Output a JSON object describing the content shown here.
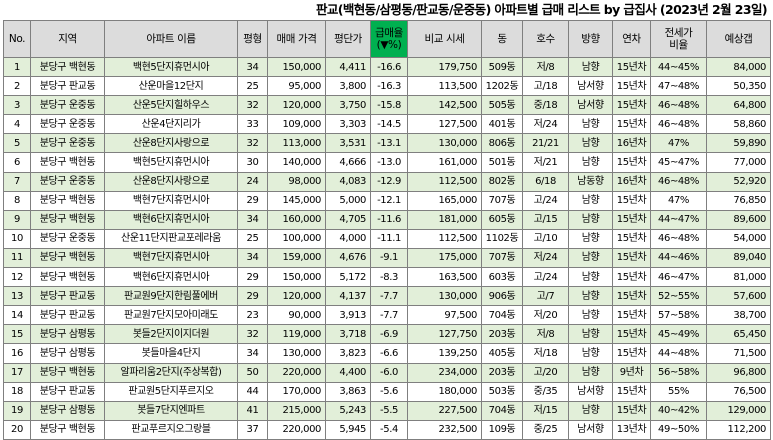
{
  "title": "판교(백현동/삼평동/판교동/운중동) 아파트별 급매 리스트 by 급집사 (2023년 2월 23일)",
  "columns": [
    "No.",
    "지역",
    "아파트 이름",
    "평형",
    "매매 가격",
    "평단가",
    "급매율\n(▼%)",
    "비교 시세",
    "동",
    "호수",
    "방향",
    "연차",
    "전세가\n비율",
    "예상갭"
  ],
  "colors": {
    "header_bg": "#dcdcdc",
    "highlight_header": "#00b050",
    "row_alt": "#e2efd9",
    "border": "#7f7f7f"
  },
  "rows": [
    [
      "1",
      "분당구 백현동",
      "백현5단지휴먼시아",
      "34",
      "150,000",
      "4,411",
      "-16.6",
      "179,750",
      "509동",
      "저/8",
      "남향",
      "15년차",
      "44~45%",
      "84,000"
    ],
    [
      "2",
      "분당구 판교동",
      "산운마을12단지",
      "25",
      "95,000",
      "3,800",
      "-16.3",
      "113,500",
      "1202동",
      "고/18",
      "남서향",
      "15년차",
      "47~48%",
      "50,350"
    ],
    [
      "3",
      "분당구 운중동",
      "산운5단지힐하우스",
      "32",
      "120,000",
      "3,750",
      "-15.8",
      "142,500",
      "505동",
      "중/18",
      "남서향",
      "15년차",
      "46~48%",
      "64,800"
    ],
    [
      "4",
      "분당구 운중동",
      "산운4단지리가",
      "33",
      "109,000",
      "3,303",
      "-14.5",
      "127,500",
      "401동",
      "저/24",
      "남향",
      "15년차",
      "46~48%",
      "58,860"
    ],
    [
      "5",
      "분당구 운중동",
      "산운8단지사랑으로",
      "32",
      "113,000",
      "3,531",
      "-13.1",
      "130,000",
      "806동",
      "21/21",
      "남향",
      "16년차",
      "47%",
      "59,890"
    ],
    [
      "6",
      "분당구 백현동",
      "백현5단지휴먼시아",
      "30",
      "140,000",
      "4,666",
      "-13.0",
      "161,000",
      "501동",
      "저/21",
      "남향",
      "15년차",
      "45~47%",
      "77,000"
    ],
    [
      "7",
      "분당구 운중동",
      "산운8단지사랑으로",
      "24",
      "98,000",
      "4,083",
      "-12.9",
      "112,500",
      "802동",
      "6/18",
      "남동향",
      "16년차",
      "46~48%",
      "52,920"
    ],
    [
      "8",
      "분당구 백현동",
      "백현7단지휴먼시아",
      "29",
      "145,000",
      "5,000",
      "-12.1",
      "165,000",
      "707동",
      "고/24",
      "남향",
      "15년차",
      "47%",
      "76,850"
    ],
    [
      "9",
      "분당구 백현동",
      "백현6단지휴먼시아",
      "34",
      "160,000",
      "4,705",
      "-11.6",
      "181,000",
      "605동",
      "고/15",
      "남향",
      "15년차",
      "44~47%",
      "89,600"
    ],
    [
      "10",
      "분당구 운중동",
      "산운11단지판교포레라움",
      "25",
      "100,000",
      "4,000",
      "-11.1",
      "112,500",
      "1102동",
      "고/10",
      "남향",
      "15년차",
      "46~48%",
      "54,000"
    ],
    [
      "11",
      "분당구 백현동",
      "백현7단지휴먼시아",
      "34",
      "159,000",
      "4,676",
      "-9.1",
      "175,000",
      "707동",
      "저/24",
      "남향",
      "15년차",
      "44~46%",
      "89,040"
    ],
    [
      "12",
      "분당구 백현동",
      "백현6단지휴먼시아",
      "29",
      "150,000",
      "5,172",
      "-8.3",
      "163,500",
      "603동",
      "고/24",
      "남향",
      "15년차",
      "46~47%",
      "81,000"
    ],
    [
      "13",
      "분당구 판교동",
      "판교원9단지한림풀에버",
      "29",
      "120,000",
      "4,137",
      "-7.7",
      "130,000",
      "906동",
      "고/7",
      "남향",
      "15년차",
      "52~55%",
      "57,600"
    ],
    [
      "14",
      "분당구 판교동",
      "판교원7단지모아미래도",
      "23",
      "90,000",
      "3,913",
      "-7.7",
      "97,500",
      "704동",
      "저/20",
      "남향",
      "15년차",
      "57~58%",
      "38,700"
    ],
    [
      "15",
      "분당구 삼평동",
      "봇들2단지이지더원",
      "32",
      "119,000",
      "3,718",
      "-6.9",
      "127,750",
      "203동",
      "저/8",
      "남향",
      "15년차",
      "45~49%",
      "65,450"
    ],
    [
      "16",
      "분당구 삼평동",
      "봇들마을4단지",
      "34",
      "130,000",
      "3,823",
      "-6.6",
      "139,250",
      "405동",
      "저/18",
      "남향",
      "15년차",
      "44~48%",
      "71,500"
    ],
    [
      "17",
      "분당구 백현동",
      "알파리움2단지(주상복합)",
      "50",
      "220,000",
      "4,400",
      "-6.0",
      "234,000",
      "203동",
      "고/20",
      "남향",
      "9년차",
      "56~58%",
      "96,800"
    ],
    [
      "18",
      "분당구 판교동",
      "판교원5단지푸르지오",
      "44",
      "170,000",
      "3,863",
      "-5.6",
      "180,000",
      "503동",
      "중/35",
      "남서향",
      "15년차",
      "55%",
      "76,500"
    ],
    [
      "19",
      "분당구 삼평동",
      "봇들7단지엔파트",
      "41",
      "215,000",
      "5,243",
      "-5.5",
      "227,500",
      "704동",
      "저/15",
      "남향",
      "15년차",
      "40~42%",
      "129,000"
    ],
    [
      "20",
      "분당구 백현동",
      "판교푸르지오그랑블",
      "37",
      "220,000",
      "5,945",
      "-5.4",
      "232,500",
      "109동",
      "중/25",
      "남서향",
      "13년차",
      "49~50%",
      "112,200"
    ]
  ]
}
